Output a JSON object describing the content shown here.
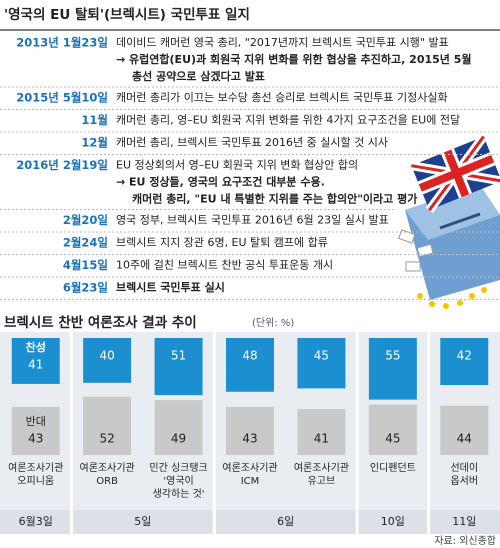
{
  "timeline": {
    "title": "'영국의 EU 탈퇴'(브렉시트) 국민투표 일지",
    "events": [
      {
        "date": "2013년 1월23일",
        "text": "데이비드 캐머런 영국 총리, \"2017년까지 브렉시트 국민투표 시행\" 발표",
        "details": [
          "→ 유럽연합(EU)과 회원국 지위 변화를 위한 협상을 추진하고, 2015년 5월",
          "총선 공약으로 삼겠다고 발표"
        ]
      },
      {
        "date": "2015년 5월10일",
        "text": "캐머런 총리가 이끄는 보수당 총선 승리로 브렉시트 국민투표 기정사실화",
        "details": []
      },
      {
        "date": "11월",
        "text": "캐머런 총리, 영–EU 회원국 지위 변화를 위한 4가지 요구조건을 EU에 전달",
        "details": []
      },
      {
        "date": "12월",
        "text": "캐머런 총리, 브렉시트 국민투표 2016년 중 실시할 것 시사",
        "details": []
      },
      {
        "date": "2016년 2월19일",
        "text": "EU 정상회의서 영–EU 회원국 지위 변화 협상안 합의",
        "details": [
          "→ EU 정상들, 영국의 요구조건 대부분 수용.",
          "캐머런 총리, \"EU 내 특별한 지위를 주는 합의안\"이라고 평가"
        ]
      },
      {
        "date": "2월20일",
        "text": "영국 정부, 브렉시트 국민투표 2016년 6월 23일 실시 발표",
        "details": []
      },
      {
        "date": "2월24일",
        "text": "브렉시트 지지 장관 6명, EU 탈퇴 캠프에 합류",
        "details": []
      },
      {
        "date": "4월15일",
        "text": "10주에 걸친 브렉시트 찬반 공식 투표운동 개시",
        "details": []
      },
      {
        "date": "6월23일",
        "text": "브렉시트 국민투표 실시",
        "details": []
      }
    ]
  },
  "chart_data": {
    "type": "bar",
    "stacked": true,
    "title": "브렉시트 찬반 여론조사 결과 추이",
    "unit": "(단위: %)",
    "series": [
      {
        "name": "찬성",
        "color": "#1c8fd0"
      },
      {
        "name": "반대",
        "color": "#c9c9c9"
      }
    ],
    "groups": [
      {
        "date": "6월3일",
        "polls": [
          {
            "org": [
              "여론조사기관",
              "오피니움"
            ],
            "values": [
              41,
              43
            ]
          }
        ]
      },
      {
        "date": "5일",
        "polls": [
          {
            "org": [
              "여론조사기관",
              "ORB"
            ],
            "values": [
              40,
              52
            ]
          },
          {
            "org": [
              "민간 싱크탱크",
              "'영국이",
              "생각하는 것'"
            ],
            "values": [
              51,
              49
            ]
          }
        ]
      },
      {
        "date": "6일",
        "polls": [
          {
            "org": [
              "여론조사기관",
              "ICM"
            ],
            "values": [
              48,
              43
            ]
          },
          {
            "org": [
              "여론조사기관",
              "유고브"
            ],
            "values": [
              45,
              41
            ]
          }
        ]
      },
      {
        "date": "10일",
        "polls": [
          {
            "org": [
              "인디펜던트"
            ],
            "values": [
              55,
              45
            ]
          }
        ]
      },
      {
        "date": "11일",
        "polls": [
          {
            "org": [
              "선데이",
              "옵서버"
            ],
            "values": [
              42,
              44
            ]
          }
        ]
      }
    ],
    "source": "자료: 외신종합"
  }
}
